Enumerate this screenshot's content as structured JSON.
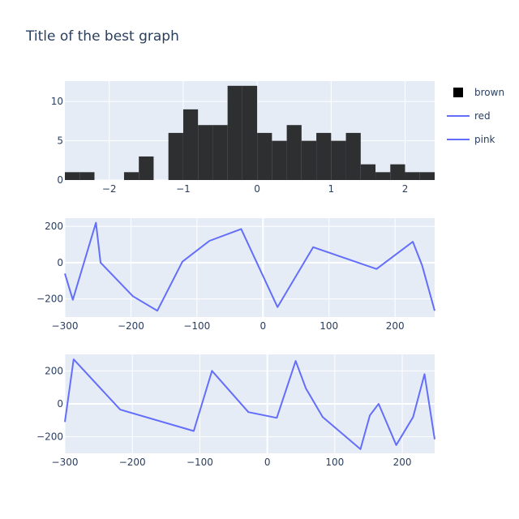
{
  "chart_data": {
    "title": "Title of the best graph",
    "legend": {
      "placement": "right",
      "entries": [
        {
          "name": "brown",
          "kind": "histogram",
          "color": "#2e2f31"
        },
        {
          "name": "red",
          "kind": "line",
          "color": "#636efa"
        },
        {
          "name": "pink",
          "kind": "line",
          "color": "#636efa"
        }
      ]
    },
    "panels": [
      {
        "type": "bar",
        "series_name": "brown",
        "color": "#2e2f31",
        "bin_width": 0.2,
        "xlim": [
          -2.6,
          2.4
        ],
        "ylim": [
          0,
          12.6
        ],
        "xticks": [
          -2,
          -1,
          0,
          1,
          2
        ],
        "xtick_labels": [
          "−2",
          "−1",
          "0",
          "1",
          "2"
        ],
        "yticks": [
          0,
          5,
          10
        ],
        "ytick_labels": [
          "0",
          "5",
          "10"
        ],
        "bins": [
          {
            "start": -2.6,
            "count": 1
          },
          {
            "start": -2.4,
            "count": 1
          },
          {
            "start": -1.8,
            "count": 1
          },
          {
            "start": -1.6,
            "count": 3
          },
          {
            "start": -1.2,
            "count": 6
          },
          {
            "start": -1.0,
            "count": 9
          },
          {
            "start": -0.8,
            "count": 7
          },
          {
            "start": -0.6,
            "count": 7
          },
          {
            "start": -0.4,
            "count": 12
          },
          {
            "start": -0.2,
            "count": 12
          },
          {
            "start": 0.0,
            "count": 6
          },
          {
            "start": 0.2,
            "count": 5
          },
          {
            "start": 0.4,
            "count": 7
          },
          {
            "start": 0.6,
            "count": 5
          },
          {
            "start": 0.8,
            "count": 6
          },
          {
            "start": 1.0,
            "count": 5
          },
          {
            "start": 1.2,
            "count": 6
          },
          {
            "start": 1.4,
            "count": 2
          },
          {
            "start": 1.6,
            "count": 1
          },
          {
            "start": 1.8,
            "count": 2
          },
          {
            "start": 2.0,
            "count": 1
          },
          {
            "start": 2.2,
            "count": 1
          }
        ]
      },
      {
        "type": "line",
        "series_name": "red",
        "color": "#636efa",
        "xlim": [
          -300,
          260
        ],
        "ylim": [
          -300,
          245
        ],
        "xticks": [
          -300,
          -200,
          -100,
          0,
          100,
          200
        ],
        "xtick_labels": [
          "−300",
          "−200",
          "−100",
          "0",
          "100",
          "200"
        ],
        "yticks": [
          -200,
          0,
          200
        ],
        "ytick_labels": [
          "−200",
          "0",
          "200"
        ],
        "x": [
          -300,
          -288,
          -253,
          -246,
          -197,
          -160,
          -122,
          -81,
          -33,
          22,
          76,
          172,
          227,
          241,
          260
        ],
        "y": [
          -60,
          -205,
          220,
          0,
          -185,
          -265,
          5,
          120,
          185,
          -245,
          85,
          -35,
          115,
          -15,
          -265
        ]
      },
      {
        "type": "line",
        "series_name": "pink",
        "color": "#636efa",
        "xlim": [
          -300,
          248
        ],
        "ylim": [
          -300,
          300
        ],
        "xticks": [
          -300,
          -200,
          -100,
          0,
          100,
          200
        ],
        "xtick_labels": [
          "−300",
          "−200",
          "−100",
          "0",
          "100",
          "200"
        ],
        "yticks": [
          -200,
          0,
          200
        ],
        "ytick_labels": [
          "−200",
          "0",
          "200"
        ],
        "x": [
          -300,
          -287,
          -218,
          -109,
          -82,
          -28,
          14,
          42,
          57,
          82,
          138,
          152,
          165,
          191,
          216,
          233,
          248
        ],
        "y": [
          -110,
          270,
          -35,
          -165,
          200,
          -50,
          -85,
          260,
          95,
          -80,
          -275,
          -70,
          0,
          -250,
          -80,
          180,
          -215
        ]
      }
    ]
  }
}
